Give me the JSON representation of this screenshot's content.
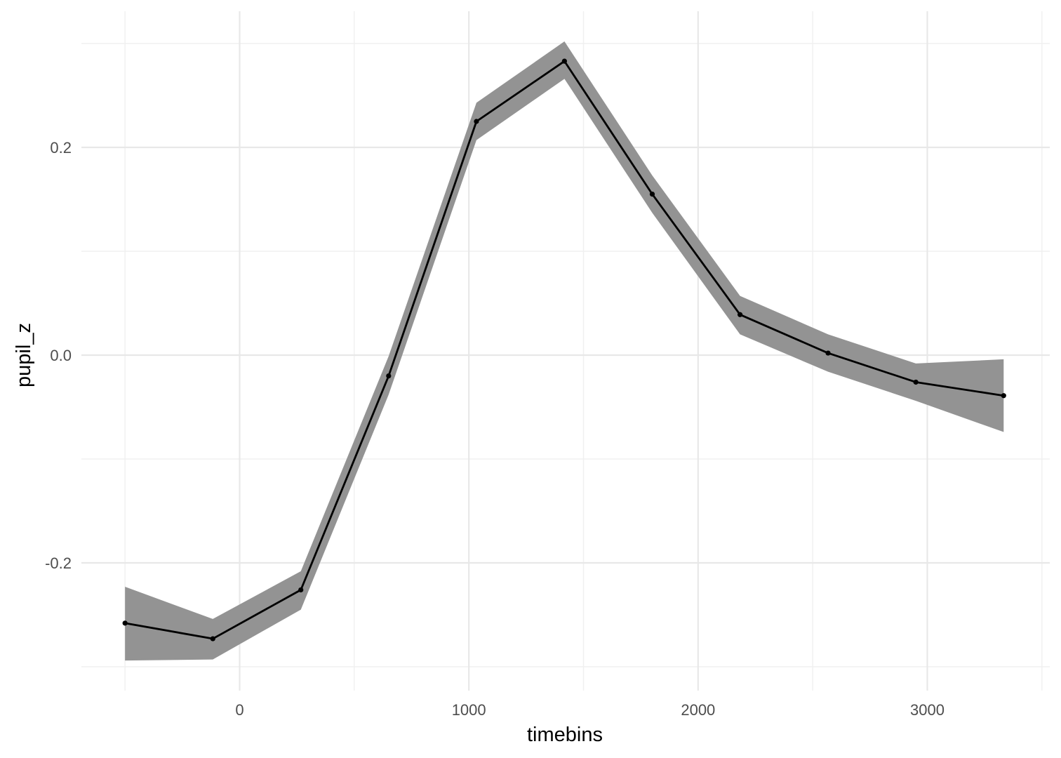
{
  "chart_data": {
    "type": "line",
    "title": "",
    "xlabel": "timebins",
    "ylabel": "pupil_z",
    "xlim": [
      -700,
      3500
    ],
    "ylim": [
      -0.32,
      0.305
    ],
    "x_ticks": [
      0,
      1000,
      2000,
      3000
    ],
    "x_tick_labels": [
      "0",
      "1000",
      "2000",
      "3000"
    ],
    "y_ticks": [
      -0.2,
      0.0,
      0.2
    ],
    "y_tick_labels": [
      "-0.2",
      "0.0",
      "0.2"
    ],
    "grid": true,
    "legend": "none",
    "colors": {
      "line": "#000000",
      "ribbon": "#939393",
      "grid": "#e8e8e8"
    },
    "series": [
      {
        "x": [
          -500,
          -117,
          267,
          650,
          1033,
          1417,
          1800,
          2183,
          2567,
          2950,
          3333
        ],
        "y": [
          -0.258,
          -0.273,
          -0.226,
          -0.02,
          0.225,
          0.283,
          0.155,
          0.039,
          0.002,
          -0.026,
          -0.039
        ],
        "lower": [
          -0.294,
          -0.293,
          -0.245,
          -0.038,
          0.207,
          0.266,
          0.137,
          0.02,
          -0.016,
          -0.044,
          -0.074
        ],
        "upper": [
          -0.223,
          -0.254,
          -0.208,
          -0.001,
          0.243,
          0.302,
          0.173,
          0.057,
          0.02,
          -0.008,
          -0.004
        ]
      }
    ]
  }
}
